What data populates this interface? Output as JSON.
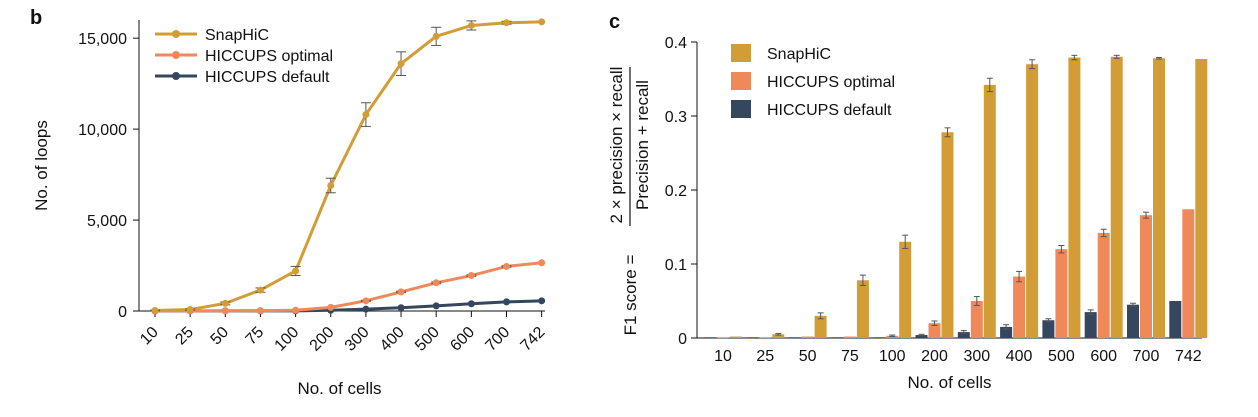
{
  "panel_letters": {
    "b": "b",
    "c": "c"
  },
  "colors": {
    "snaphic": "#D29C36",
    "optimal": "#F0895A",
    "default": "#34475E",
    "axis": "#111111"
  },
  "chart_data": [
    {
      "panel": "b",
      "type": "line",
      "x": [
        "10",
        "25",
        "50",
        "75",
        "100",
        "200",
        "300",
        "400",
        "500",
        "600",
        "700",
        "742"
      ],
      "xlabel": "No. of cells",
      "ylabel": "No. of loops",
      "ylim": [
        0,
        16000
      ],
      "yticks": [
        0,
        5000,
        10000,
        15000
      ],
      "ytick_labels": [
        "0",
        "5,000",
        "10,000",
        "15,000"
      ],
      "legend_position": "top-left",
      "grid": false,
      "series": [
        {
          "name": "SnapHiC",
          "color": "#D29C36",
          "values": [
            30,
            80,
            420,
            1150,
            2200,
            6900,
            10800,
            13600,
            15100,
            15700,
            15850,
            15900
          ],
          "errors": [
            20,
            40,
            80,
            120,
            250,
            400,
            650,
            650,
            500,
            250,
            80,
            0
          ]
        },
        {
          "name": "HICCUPS optimal",
          "color": "#F0895A",
          "values": [
            5,
            10,
            15,
            20,
            40,
            200,
            560,
            1050,
            1550,
            1950,
            2450,
            2650
          ],
          "errors": [
            0,
            0,
            0,
            0,
            0,
            0,
            30,
            40,
            50,
            40,
            40,
            0
          ]
        },
        {
          "name": "HICCUPS default",
          "color": "#34475E",
          "values": [
            2,
            3,
            5,
            8,
            10,
            40,
            100,
            180,
            280,
            400,
            500,
            560
          ],
          "errors": [
            0,
            0,
            0,
            0,
            0,
            0,
            0,
            0,
            0,
            0,
            0,
            0
          ]
        }
      ]
    },
    {
      "panel": "c",
      "type": "bar",
      "categories": [
        "10",
        "25",
        "50",
        "75",
        "100",
        "200",
        "300",
        "400",
        "500",
        "600",
        "700",
        "742"
      ],
      "xlabel": "No. of cells",
      "ylabel_prefix": "F1 score =",
      "ylabel_numerator": "2 × precision × recall",
      "ylabel_denominator": "Precision + recall",
      "ylim": [
        0,
        0.4
      ],
      "yticks": [
        0,
        0.1,
        0.2,
        0.3,
        0.4
      ],
      "ytick_labels": [
        "0",
        "0.1",
        "0.2",
        "0.3",
        "0.4"
      ],
      "legend_position": "top-left",
      "grid": false,
      "series": [
        {
          "name": "SnapHiC",
          "color": "#D29C36",
          "values": [
            0.002,
            0.005,
            0.03,
            0.078,
            0.13,
            0.278,
            0.342,
            0.37,
            0.379,
            0.38,
            0.378,
            0.377
          ],
          "errors": [
            0,
            0.001,
            0.004,
            0.007,
            0.009,
            0.006,
            0.009,
            0.006,
            0.003,
            0.002,
            0.001,
            0
          ]
        },
        {
          "name": "HICCUPS optimal",
          "color": "#F0895A",
          "values": [
            0.001,
            0.001,
            0.002,
            0.002,
            0.003,
            0.02,
            0.05,
            0.083,
            0.12,
            0.142,
            0.166,
            0.174
          ],
          "errors": [
            0,
            0,
            0,
            0,
            0.001,
            0.003,
            0.006,
            0.007,
            0.005,
            0.005,
            0.004,
            0
          ]
        },
        {
          "name": "HICCUPS default",
          "color": "#34475E",
          "values": [
            0.001,
            0.001,
            0.001,
            0.001,
            0.001,
            0.004,
            0.008,
            0.015,
            0.024,
            0.035,
            0.045,
            0.05
          ],
          "errors": [
            0,
            0,
            0,
            0,
            0,
            0.001,
            0.002,
            0.003,
            0.002,
            0.003,
            0.002,
            0
          ]
        }
      ]
    }
  ]
}
